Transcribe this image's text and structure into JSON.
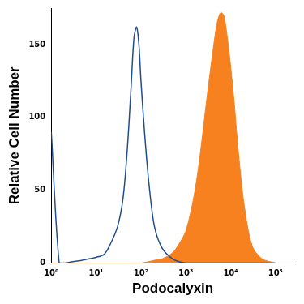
{
  "chart_data": {
    "type": "line",
    "x_label": "Podocalyxin",
    "y_label": "Relative Cell Number",
    "log": "x",
    "grid": false,
    "x": [
      1,
      1.5,
      2,
      3,
      5,
      7,
      10,
      15,
      20,
      30,
      40,
      50,
      60,
      70,
      80,
      90,
      100,
      120,
      150,
      200,
      300,
      500,
      700,
      1000,
      1500,
      2000,
      3000,
      4000,
      5000,
      6000,
      7000,
      8000,
      10000,
      12000,
      15000,
      20000,
      30000,
      50000,
      100000
    ],
    "series": [
      {
        "type": "line",
        "color": "#1f4e8c",
        "values": [
          90,
          0,
          0,
          1,
          2,
          3,
          4,
          6,
          12,
          25,
          45,
          80,
          120,
          155,
          162,
          150,
          125,
          90,
          55,
          25,
          10,
          3,
          1,
          0,
          0,
          0,
          0,
          0,
          0,
          0,
          0,
          0,
          0,
          0,
          0,
          0,
          0,
          0,
          0
        ]
      },
      {
        "type": "area",
        "color": "#f7811f",
        "values": [
          0,
          0,
          0,
          0,
          0,
          0,
          0,
          0,
          0,
          0,
          0,
          0,
          0,
          0,
          0,
          0,
          0,
          0.5,
          1,
          2,
          3,
          7,
          13,
          22,
          45,
          70,
          115,
          145,
          165,
          172,
          170,
          160,
          135,
          110,
          75,
          40,
          12,
          3,
          0
        ]
      }
    ],
    "xlim": [
      1,
      262144
    ],
    "xticks": [
      {
        "value": 1,
        "label": "10⁰"
      },
      {
        "value": 10,
        "label": "10¹"
      },
      {
        "value": 100,
        "label": "10²"
      },
      {
        "value": 1000,
        "label": "10³"
      },
      {
        "value": 10000,
        "label": "10⁴"
      },
      {
        "value": 100000,
        "label": "10⁵"
      }
    ],
    "ylim": [
      0,
      175
    ],
    "yticks": [
      0,
      50,
      100,
      150
    ]
  }
}
